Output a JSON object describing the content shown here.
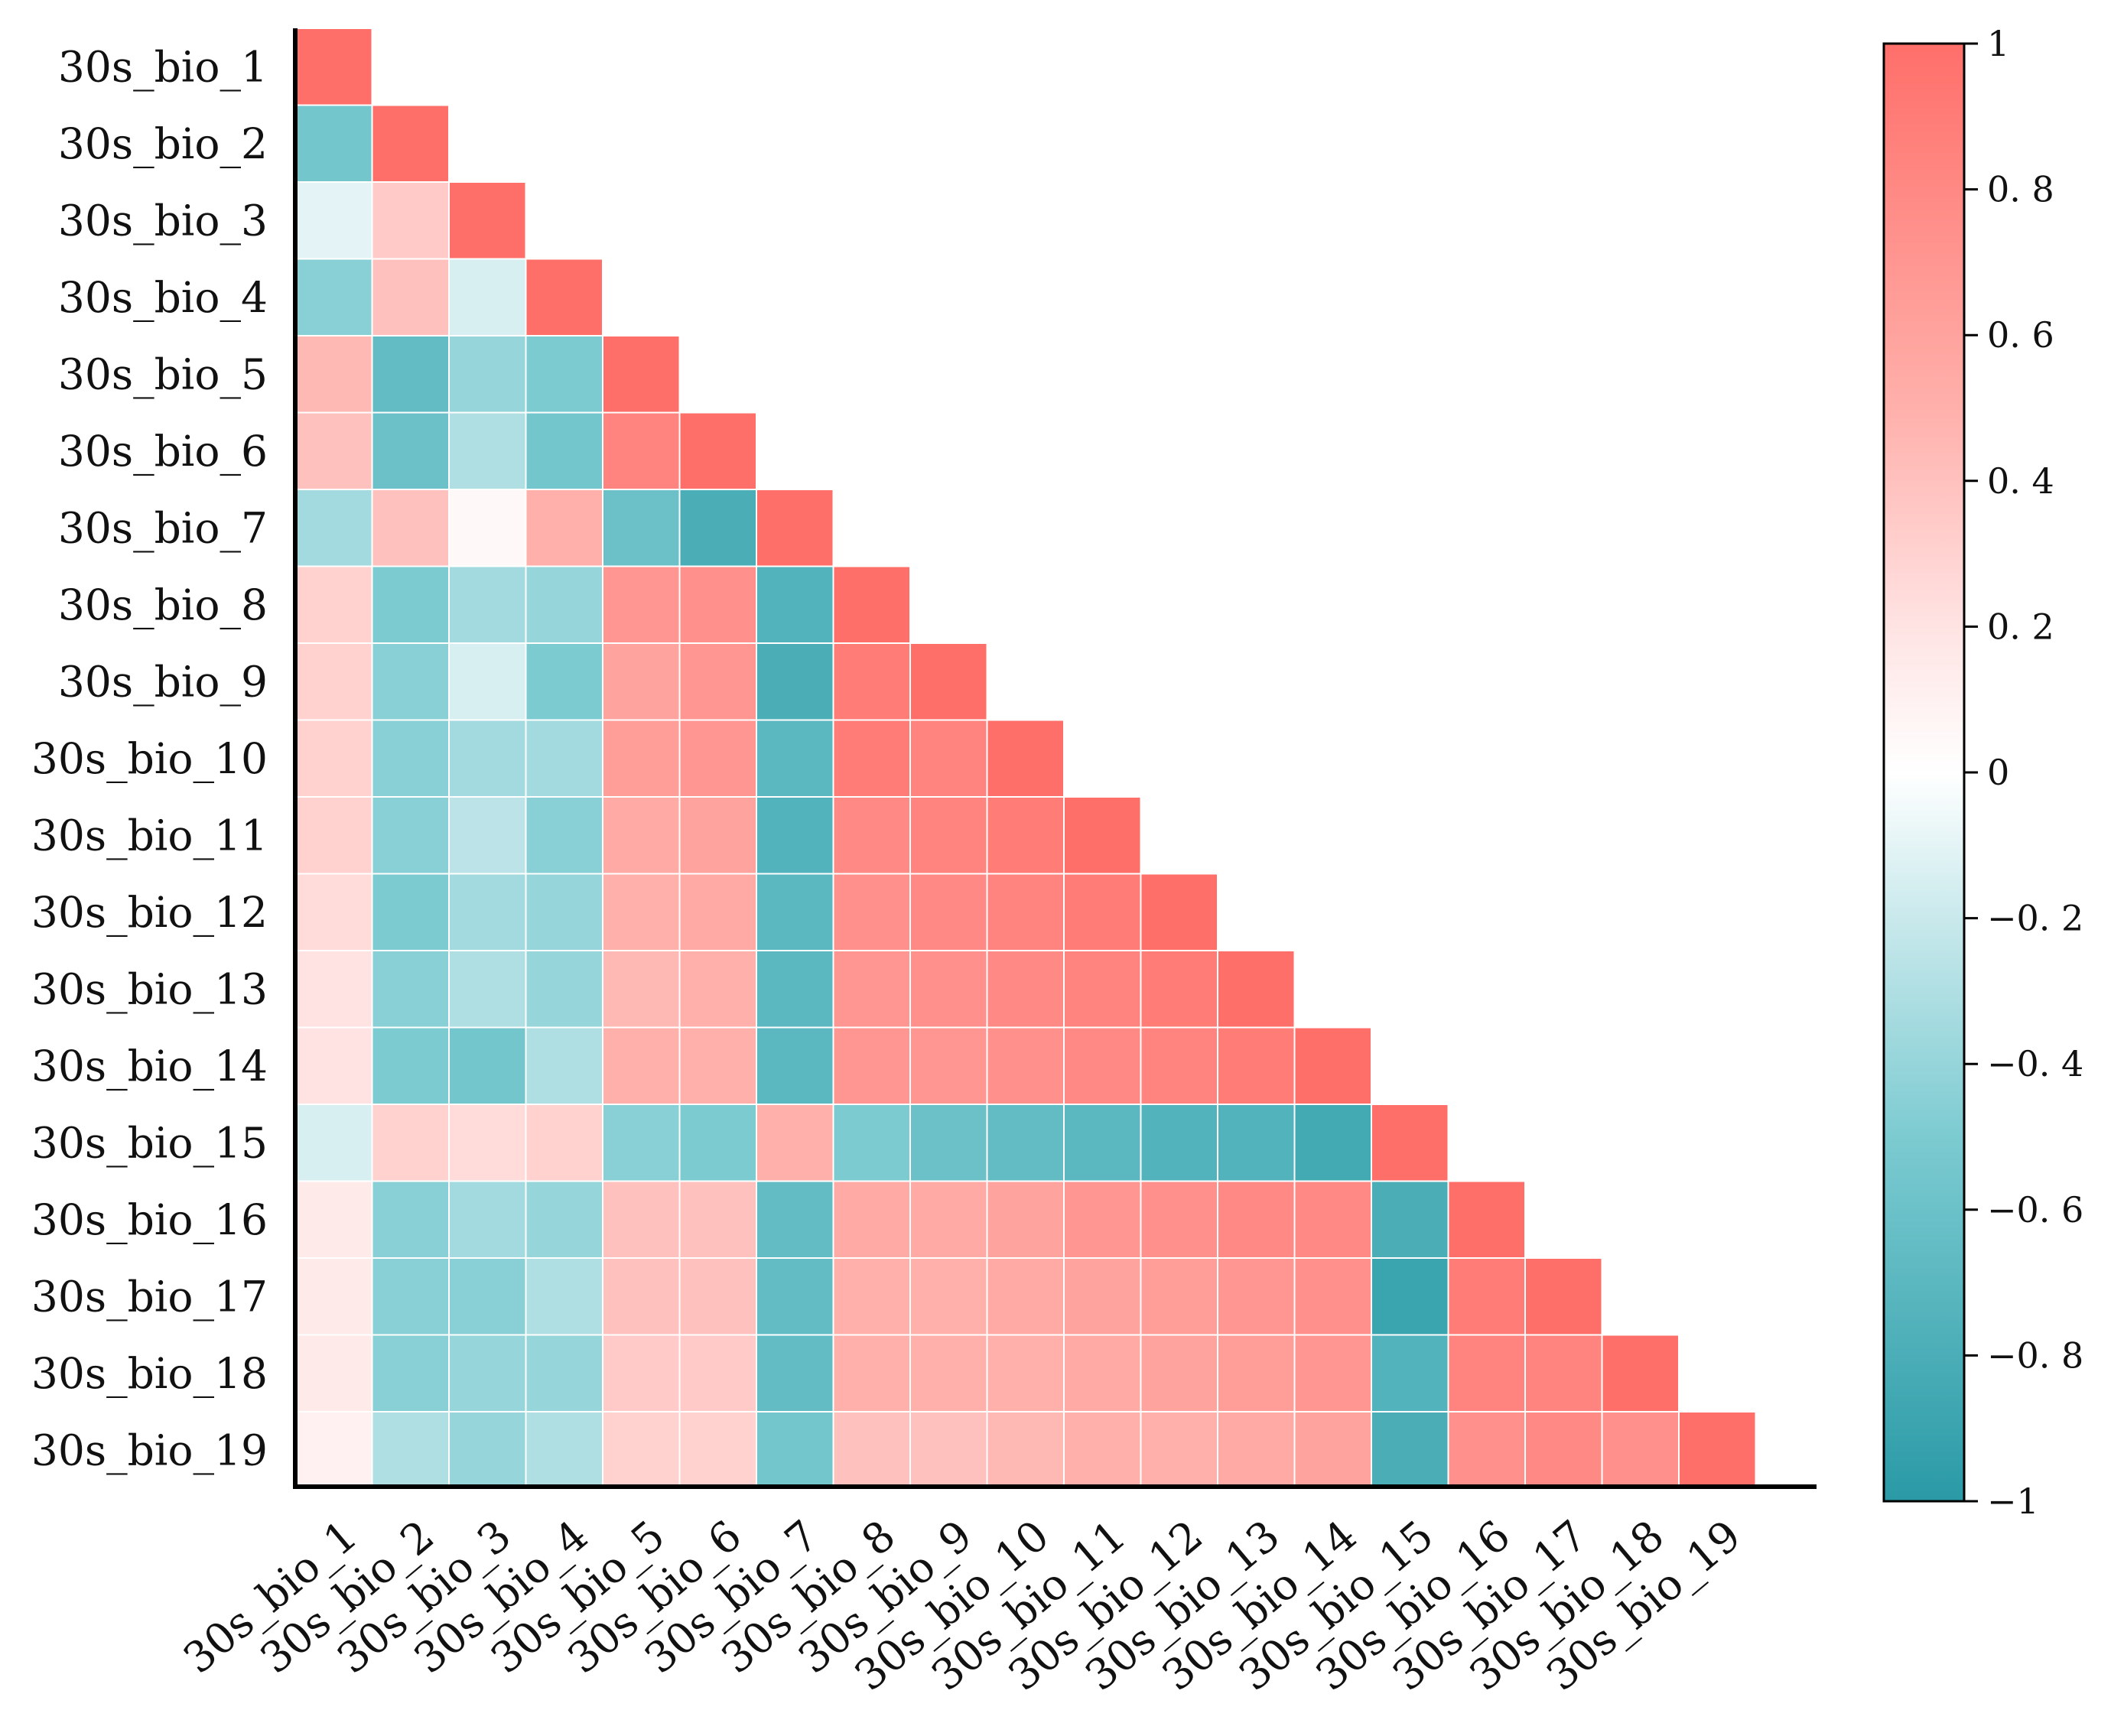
{
  "chart_data": {
    "type": "heatmap",
    "title": "",
    "xlabel": "",
    "ylabel": "",
    "layout": "lower-triangular correlation matrix",
    "variables": [
      "30s_bio_1",
      "30s_bio_2",
      "30s_bio_3",
      "30s_bio_4",
      "30s_bio_5",
      "30s_bio_6",
      "30s_bio_7",
      "30s_bio_8",
      "30s_bio_9",
      "30s_bio_10",
      "30s_bio_11",
      "30s_bio_12",
      "30s_bio_13",
      "30s_bio_14",
      "30s_bio_15",
      "30s_bio_16",
      "30s_bio_17",
      "30s_bio_18",
      "30s_bio_19"
    ],
    "matrix": [
      [
        1
      ],
      [
        -0.55,
        1
      ],
      [
        -0.1,
        0.35,
        1
      ],
      [
        -0.45,
        0.4,
        -0.15,
        1
      ],
      [
        0.45,
        -0.65,
        -0.4,
        -0.5,
        1
      ],
      [
        0.4,
        -0.6,
        -0.3,
        -0.55,
        0.85,
        1
      ],
      [
        -0.35,
        0.4,
        0.05,
        0.5,
        -0.6,
        -0.8,
        1
      ],
      [
        0.3,
        -0.5,
        -0.35,
        -0.4,
        0.7,
        0.75,
        -0.75,
        1
      ],
      [
        0.3,
        -0.45,
        -0.15,
        -0.5,
        0.6,
        0.7,
        -0.8,
        0.9,
        1
      ],
      [
        0.3,
        -0.45,
        -0.35,
        -0.35,
        0.65,
        0.7,
        -0.7,
        0.9,
        0.85,
        1
      ],
      [
        0.3,
        -0.45,
        -0.25,
        -0.45,
        0.55,
        0.6,
        -0.75,
        0.8,
        0.85,
        0.9,
        1
      ],
      [
        0.25,
        -0.5,
        -0.35,
        -0.4,
        0.5,
        0.55,
        -0.7,
        0.75,
        0.8,
        0.85,
        0.9,
        1
      ],
      [
        0.2,
        -0.45,
        -0.3,
        -0.4,
        0.45,
        0.5,
        -0.7,
        0.7,
        0.75,
        0.8,
        0.85,
        0.9,
        1
      ],
      [
        0.2,
        -0.5,
        -0.55,
        -0.3,
        0.5,
        0.5,
        -0.7,
        0.7,
        0.7,
        0.75,
        0.8,
        0.85,
        0.9,
        1
      ],
      [
        -0.15,
        0.3,
        0.25,
        0.3,
        -0.45,
        -0.5,
        0.5,
        -0.5,
        -0.6,
        -0.65,
        -0.7,
        -0.75,
        -0.75,
        -0.85,
        1
      ],
      [
        0.15,
        -0.45,
        -0.35,
        -0.4,
        0.4,
        0.4,
        -0.65,
        0.55,
        0.55,
        0.6,
        0.7,
        0.75,
        0.8,
        0.8,
        -0.8,
        1
      ],
      [
        0.15,
        -0.45,
        -0.45,
        -0.3,
        0.4,
        0.4,
        -0.65,
        0.5,
        0.5,
        0.55,
        0.6,
        0.65,
        0.7,
        0.75,
        -0.9,
        0.9,
        1
      ],
      [
        0.15,
        -0.45,
        -0.4,
        -0.4,
        0.35,
        0.35,
        -0.65,
        0.5,
        0.5,
        0.5,
        0.55,
        0.6,
        0.65,
        0.7,
        -0.75,
        0.85,
        0.85,
        1
      ],
      [
        0.1,
        -0.3,
        -0.4,
        -0.3,
        0.3,
        0.3,
        -0.55,
        0.4,
        0.4,
        0.45,
        0.5,
        0.5,
        0.55,
        0.6,
        -0.8,
        0.75,
        0.8,
        0.75,
        1
      ]
    ],
    "colorbar": {
      "min": -1,
      "max": 1,
      "ticks": [
        "1",
        "0. 8",
        "0. 6",
        "0. 4",
        "0. 2",
        "0",
        "−0. 2",
        "−0. 4",
        "−0. 6",
        "−0. 8",
        "−1"
      ],
      "tick_values": [
        1,
        0.8,
        0.6,
        0.4,
        0.2,
        0,
        -0.2,
        -0.4,
        -0.6,
        -0.8,
        -1
      ],
      "stops": [
        {
          "value": -1,
          "color": "#2a9aa6"
        },
        {
          "value": -0.5,
          "color": "#7ccbd1"
        },
        {
          "value": -0.2,
          "color": "#c9e9ec"
        },
        {
          "value": 0,
          "color": "#ffffff"
        },
        {
          "value": 0.2,
          "color": "#ffe3e3"
        },
        {
          "value": 0.5,
          "color": "#ffb0ab"
        },
        {
          "value": 1,
          "color": "#ff6f6a"
        }
      ]
    }
  }
}
